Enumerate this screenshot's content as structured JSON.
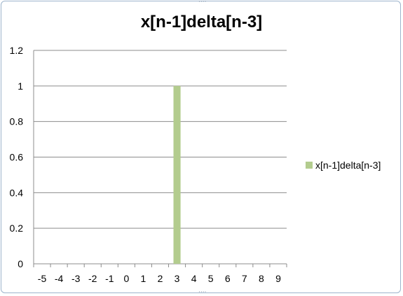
{
  "chart_data": {
    "type": "bar",
    "title": "x[n-1]delta[n-3]",
    "xlabel": "",
    "ylabel": "",
    "categories": [
      "-5",
      "-4",
      "-3",
      "-2",
      "-1",
      "0",
      "1",
      "2",
      "3",
      "4",
      "5",
      "6",
      "7",
      "8",
      "9"
    ],
    "series": [
      {
        "name": "x[n-1]delta[n-3]",
        "values": [
          0,
          0,
          0,
          0,
          0,
          0,
          0,
          0,
          1,
          0,
          0,
          0,
          0,
          0,
          0
        ],
        "color": "#b3cc8e"
      }
    ],
    "ylim": [
      0,
      1.2
    ],
    "yticks": [
      "0",
      "0.2",
      "0.4",
      "0.6",
      "0.8",
      "1",
      "1.2"
    ],
    "grid": true,
    "legend_position": "right"
  }
}
